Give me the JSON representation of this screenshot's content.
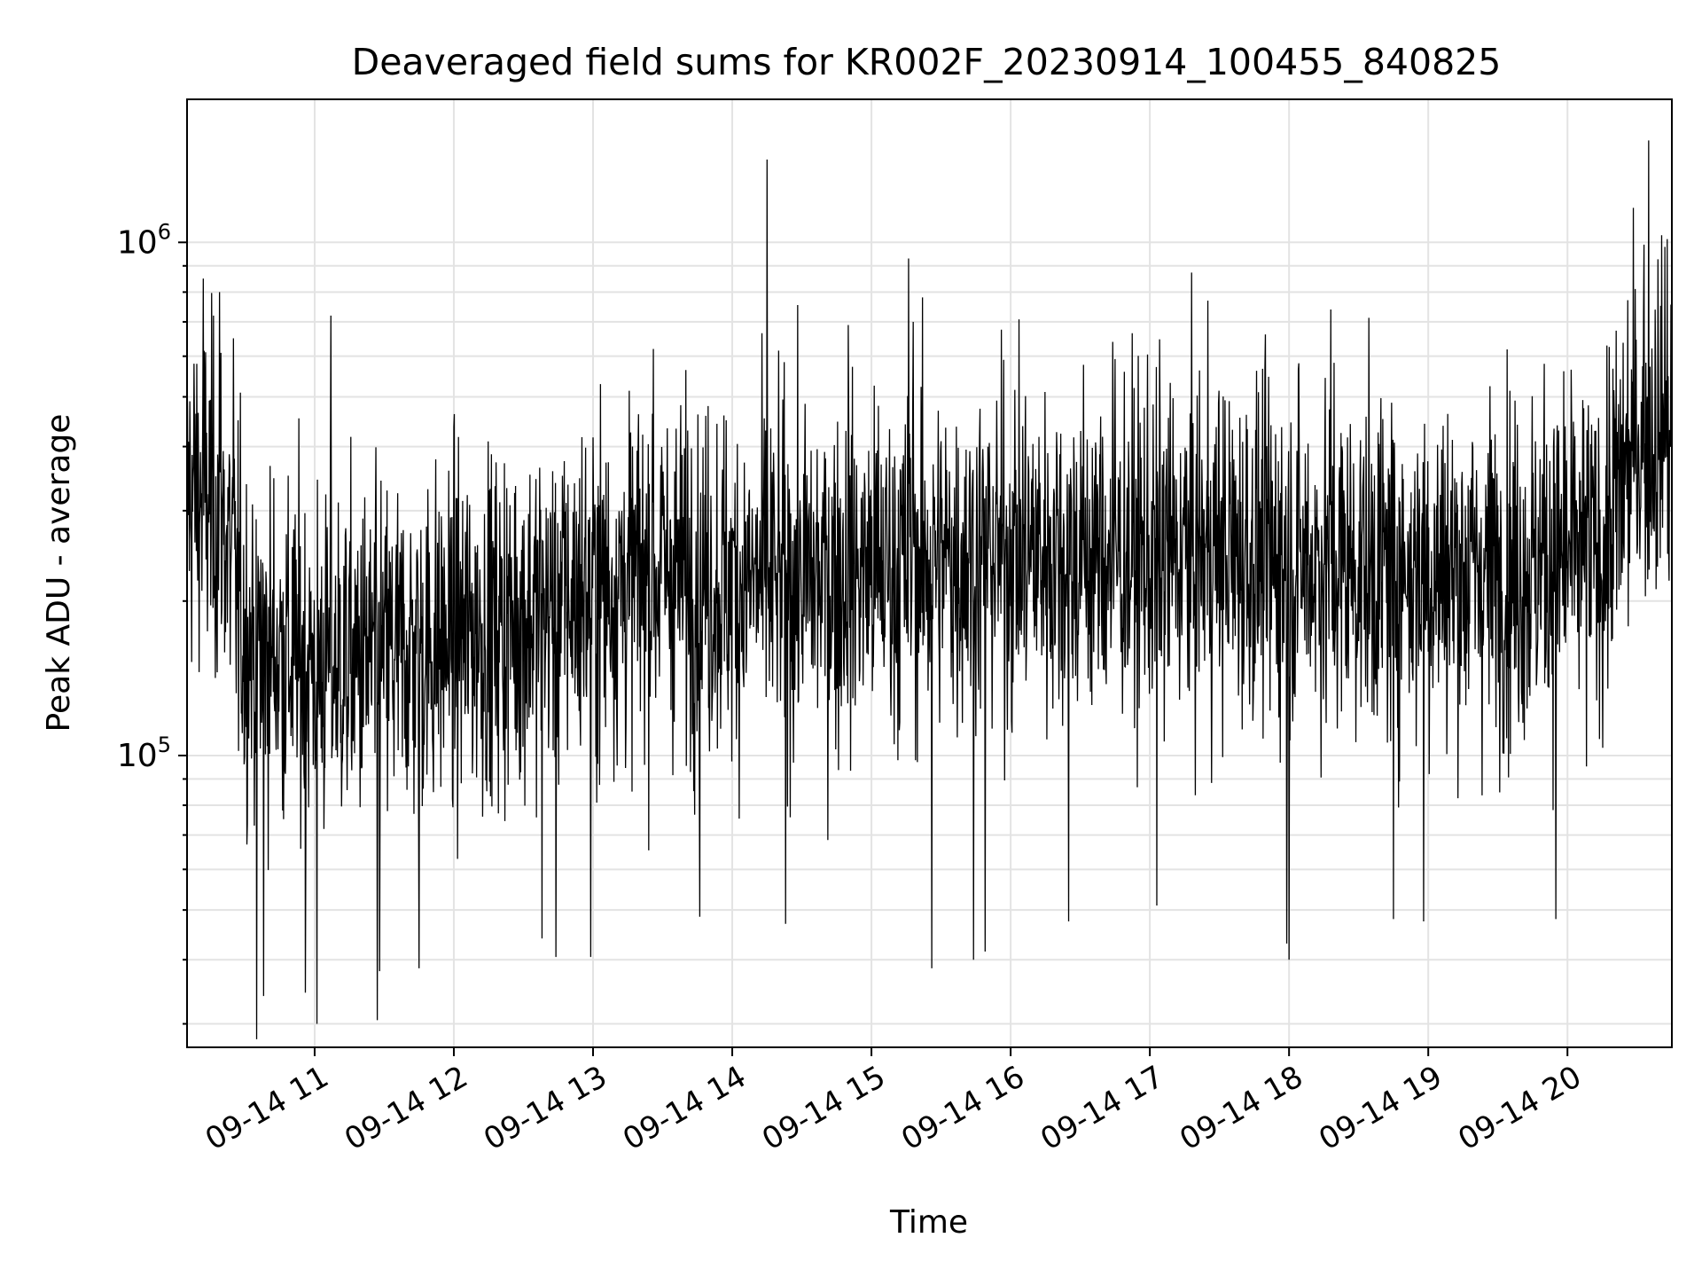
{
  "chart_data": {
    "type": "line",
    "title": "Deaveraged field sums for KR002F_20230914_100455_840825",
    "xlabel": "Time",
    "ylabel": "Peak ADU - average",
    "yscale": "log",
    "xlim": [
      "2023-09-14 10:05",
      "2023-09-14 20:45"
    ],
    "ylim": [
      27000,
      1900000
    ],
    "grid": true,
    "x_tick_labels": [
      {
        "t": "2023-09-14 11:00",
        "label": "09-14 11"
      },
      {
        "t": "2023-09-14 12:00",
        "label": "09-14 12"
      },
      {
        "t": "2023-09-14 13:00",
        "label": "09-14 13"
      },
      {
        "t": "2023-09-14 14:00",
        "label": "09-14 14"
      },
      {
        "t": "2023-09-14 15:00",
        "label": "09-14 15"
      },
      {
        "t": "2023-09-14 16:00",
        "label": "09-14 16"
      },
      {
        "t": "2023-09-14 17:00",
        "label": "09-14 17"
      },
      {
        "t": "2023-09-14 18:00",
        "label": "09-14 18"
      },
      {
        "t": "2023-09-14 19:00",
        "label": "09-14 19"
      },
      {
        "t": "2023-09-14 20:00",
        "label": "09-14 20"
      }
    ],
    "y_tick_labels": [
      {
        "value": 100000,
        "base": "10",
        "exp": "5"
      },
      {
        "value": 1000000,
        "base": "10",
        "exp": "6"
      }
    ],
    "series": [
      {
        "color": "#000000",
        "baseline": [
          {
            "t": "2023-09-14 10:05",
            "y": 330000
          },
          {
            "t": "2023-09-14 10:20",
            "y": 300000
          },
          {
            "t": "2023-09-14 10:30",
            "y": 170000
          },
          {
            "t": "2023-09-14 11:00",
            "y": 150000
          },
          {
            "t": "2023-09-14 11:30",
            "y": 155000
          },
          {
            "t": "2023-09-14 12:00",
            "y": 170000
          },
          {
            "t": "2023-09-14 12:30",
            "y": 185000
          },
          {
            "t": "2023-09-14 13:00",
            "y": 210000
          },
          {
            "t": "2023-09-14 13:30",
            "y": 230000
          },
          {
            "t": "2023-09-14 14:00",
            "y": 215000
          },
          {
            "t": "2023-09-14 14:30",
            "y": 220000
          },
          {
            "t": "2023-09-14 15:00",
            "y": 230000
          },
          {
            "t": "2023-09-14 15:30",
            "y": 240000
          },
          {
            "t": "2023-09-14 16:00",
            "y": 250000
          },
          {
            "t": "2023-09-14 16:30",
            "y": 245000
          },
          {
            "t": "2023-09-14 17:00",
            "y": 245000
          },
          {
            "t": "2023-09-14 17:30",
            "y": 250000
          },
          {
            "t": "2023-09-14 18:00",
            "y": 240000
          },
          {
            "t": "2023-09-14 18:30",
            "y": 235000
          },
          {
            "t": "2023-09-14 19:00",
            "y": 230000
          },
          {
            "t": "2023-09-14 19:30",
            "y": 230000
          },
          {
            "t": "2023-09-14 20:00",
            "y": 240000
          },
          {
            "t": "2023-09-14 20:15",
            "y": 250000
          },
          {
            "t": "2023-09-14 20:30",
            "y": 420000
          },
          {
            "t": "2023-09-14 20:45",
            "y": 430000
          }
        ],
        "spikes": [
          {
            "t": "2023-09-14 14:15",
            "y": 1450000
          },
          {
            "t": "2023-09-14 15:16",
            "y": 930000
          },
          {
            "t": "2023-09-14 14:50",
            "y": 690000
          },
          {
            "t": "2023-09-14 15:18",
            "y": 700000
          },
          {
            "t": "2023-09-14 17:25",
            "y": 770000
          },
          {
            "t": "2023-09-14 20:35",
            "y": 1580000
          },
          {
            "t": "2023-09-14 20:33",
            "y": 990000
          },
          {
            "t": "2023-09-14 20:42",
            "y": 980000
          },
          {
            "t": "2023-09-14 11:07",
            "y": 720000
          },
          {
            "t": "2023-09-14 10:12",
            "y": 850000
          },
          {
            "t": "2023-09-14 10:19",
            "y": 800000
          },
          {
            "t": "2023-09-14 10:25",
            "y": 650000
          },
          {
            "t": "2023-09-14 13:26",
            "y": 620000
          },
          {
            "t": "2023-09-14 16:44",
            "y": 640000
          },
          {
            "t": "2023-09-14 18:18",
            "y": 740000
          },
          {
            "t": "2023-09-14 19:50",
            "y": 580000
          },
          {
            "t": "2023-09-14 10:35",
            "y": 28000
          },
          {
            "t": "2023-09-14 11:01",
            "y": 30000
          },
          {
            "t": "2023-09-14 11:27",
            "y": 30500
          },
          {
            "t": "2023-09-14 10:38",
            "y": 34000
          },
          {
            "t": "2023-09-14 10:56",
            "y": 34500
          },
          {
            "t": "2023-09-14 11:28",
            "y": 38000
          },
          {
            "t": "2023-09-14 11:45",
            "y": 38500
          },
          {
            "t": "2023-09-14 15:26",
            "y": 38500
          },
          {
            "t": "2023-09-14 15:44",
            "y": 40000
          },
          {
            "t": "2023-09-14 18:00",
            "y": 40000
          },
          {
            "t": "2023-09-14 12:44",
            "y": 40500
          },
          {
            "t": "2023-09-14 12:59",
            "y": 40500
          },
          {
            "t": "2023-09-14 15:49",
            "y": 41500
          },
          {
            "t": "2023-09-14 17:59",
            "y": 43000
          },
          {
            "t": "2023-09-14 12:38",
            "y": 44000
          },
          {
            "t": "2023-09-14 14:23",
            "y": 47000
          },
          {
            "t": "2023-09-14 18:58",
            "y": 47500
          },
          {
            "t": "2023-09-14 16:25",
            "y": 47500
          },
          {
            "t": "2023-09-14 13:46",
            "y": 48500
          },
          {
            "t": "2023-09-14 18:45",
            "y": 48000
          },
          {
            "t": "2023-09-14 19:55",
            "y": 48000
          },
          {
            "t": "2023-09-14 17:03",
            "y": 51000
          }
        ]
      }
    ]
  }
}
